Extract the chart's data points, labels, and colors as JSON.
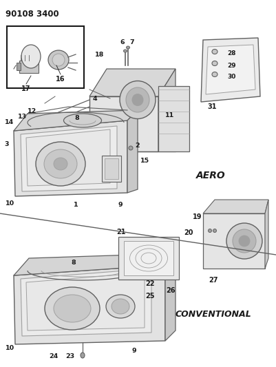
{
  "title": "90108 3400",
  "background_color": "#ffffff",
  "figsize": [
    4.01,
    5.33
  ],
  "dpi": 100,
  "aero_label": "AERO",
  "conventional_label": "CONVENTIONAL",
  "gray_light": "#c8c8c8",
  "gray_mid": "#a0a0a0",
  "gray_dark": "#606060",
  "black": "#1a1a1a",
  "white": "#ffffff",
  "off_white": "#f0f0f0"
}
